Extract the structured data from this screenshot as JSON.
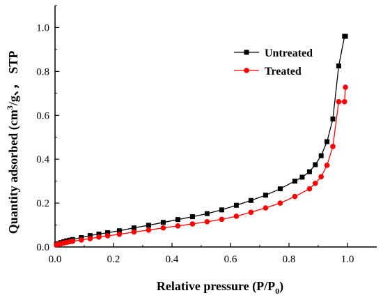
{
  "chart_data": {
    "type": "line",
    "title": "",
    "xlabel": "Relative pressure (P/P",
    "xlabel_sub": "0",
    "xlabel_end": ")",
    "ylabel_pre": "Quantity adsorbed (cm",
    "ylabel_sup": "3",
    "ylabel_post": "/g、，  STP",
    "xlim": [
      0.0,
      1.1
    ],
    "ylim": [
      0.0,
      1.1
    ],
    "xticks": [
      "0.0",
      "0.2",
      "0.4",
      "0.6",
      "0.8",
      "1.0"
    ],
    "yticks": [
      "0.0",
      "0.2",
      "0.4",
      "0.6",
      "0.8",
      "1.0"
    ],
    "xtick_values": [
      0.0,
      0.2,
      0.4,
      0.6,
      0.8,
      1.0
    ],
    "ytick_values": [
      0.0,
      0.2,
      0.4,
      0.6,
      0.8,
      1.0
    ],
    "grid": false,
    "legend_position": "top-right",
    "series": [
      {
        "name": "Untreated",
        "color": "#000000",
        "marker": "square",
        "x": [
          0.005,
          0.01,
          0.02,
          0.03,
          0.04,
          0.05,
          0.06,
          0.09,
          0.12,
          0.15,
          0.18,
          0.22,
          0.27,
          0.32,
          0.37,
          0.42,
          0.47,
          0.52,
          0.57,
          0.62,
          0.67,
          0.72,
          0.77,
          0.82,
          0.845,
          0.87,
          0.89,
          0.91,
          0.93,
          0.95,
          0.97,
          0.99,
          0.993
        ],
        "y": [
          0.012,
          0.015,
          0.02,
          0.024,
          0.028,
          0.031,
          0.034,
          0.043,
          0.052,
          0.059,
          0.065,
          0.074,
          0.087,
          0.099,
          0.112,
          0.125,
          0.138,
          0.152,
          0.169,
          0.19,
          0.212,
          0.236,
          0.265,
          0.3,
          0.318,
          0.343,
          0.375,
          0.416,
          0.48,
          0.583,
          0.825,
          0.96,
          0.96
        ]
      },
      {
        "name": "Treated",
        "color": "#ff0000",
        "marker": "circle",
        "x": [
          0.005,
          0.01,
          0.02,
          0.03,
          0.04,
          0.05,
          0.06,
          0.09,
          0.12,
          0.15,
          0.18,
          0.22,
          0.27,
          0.32,
          0.37,
          0.42,
          0.47,
          0.52,
          0.57,
          0.62,
          0.67,
          0.72,
          0.77,
          0.82,
          0.87,
          0.89,
          0.91,
          0.93,
          0.95,
          0.97,
          0.99,
          0.993
        ],
        "y": [
          0.01,
          0.012,
          0.015,
          0.018,
          0.021,
          0.024,
          0.026,
          0.032,
          0.038,
          0.045,
          0.051,
          0.058,
          0.068,
          0.077,
          0.087,
          0.096,
          0.105,
          0.115,
          0.126,
          0.14,
          0.158,
          0.178,
          0.2,
          0.23,
          0.265,
          0.29,
          0.32,
          0.372,
          0.458,
          0.662,
          0.662,
          0.728
        ]
      }
    ]
  }
}
